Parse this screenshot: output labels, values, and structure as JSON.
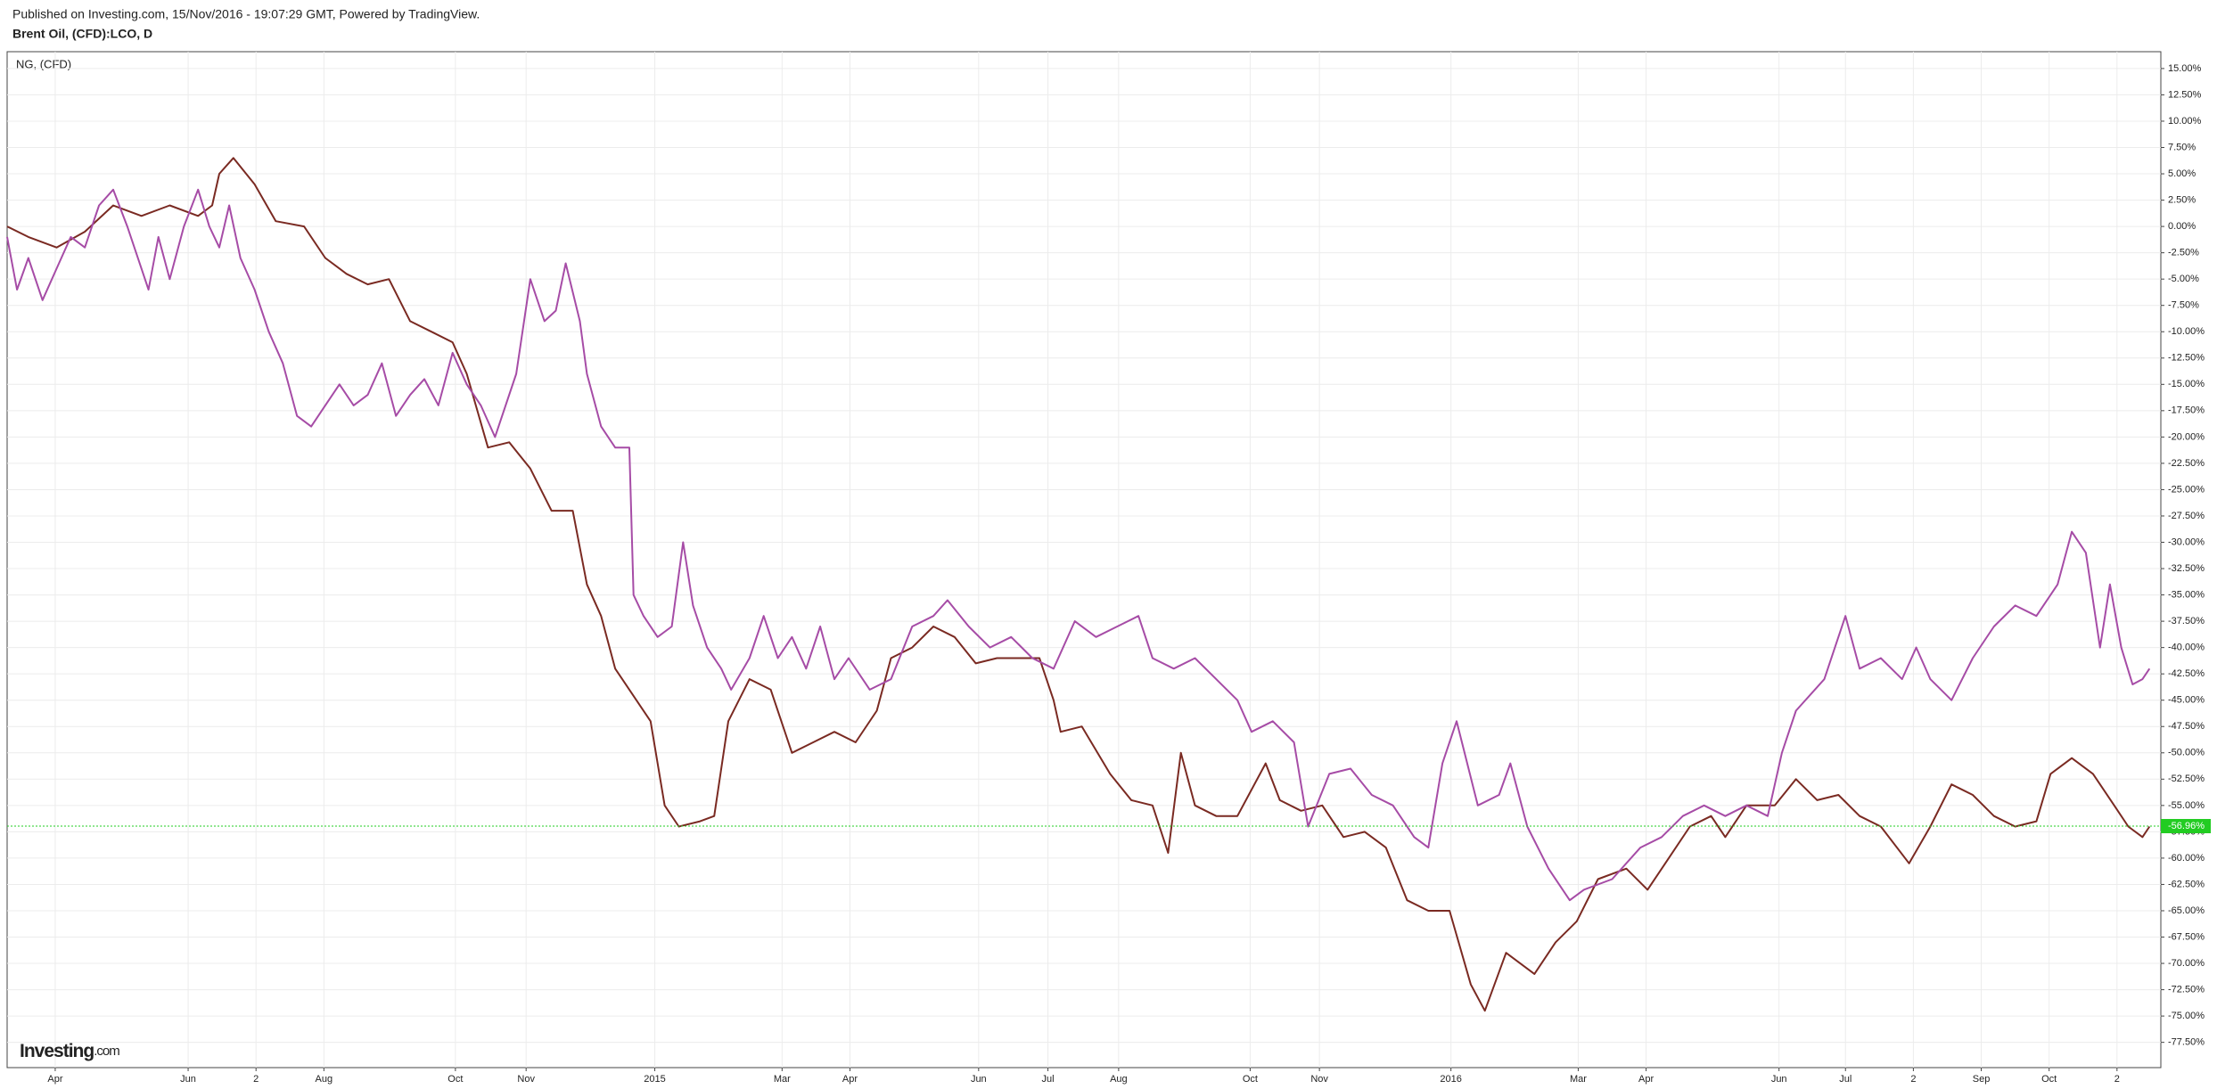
{
  "chart_data": {
    "type": "line",
    "subtitle": "Published on Investing.com, 15/Nov/2016 - 19:07:29 GMT, Powered by TradingView.",
    "title": "Brent Oil, (CFD):LCO, D",
    "legend_label": "NG,  (CFD)",
    "logo": [
      "Investing",
      ".com"
    ],
    "grid": true,
    "xlim": [
      5,
      1528
    ],
    "ylim": [
      -79.9,
      16.6
    ],
    "xticks": [
      {
        "value": 39,
        "label": "Apr"
      },
      {
        "value": 133,
        "label": "Jun"
      },
      {
        "value": 181,
        "label": "2"
      },
      {
        "value": 229,
        "label": "Aug"
      },
      {
        "value": 322,
        "label": "Oct"
      },
      {
        "value": 372,
        "label": "Nov"
      },
      {
        "value": 463,
        "label": "2015"
      },
      {
        "value": 553,
        "label": "Mar"
      },
      {
        "value": 601,
        "label": "Apr"
      },
      {
        "value": 692,
        "label": "Jun"
      },
      {
        "value": 741,
        "label": "Jul"
      },
      {
        "value": 791,
        "label": "Aug"
      },
      {
        "value": 884,
        "label": "Oct"
      },
      {
        "value": 933,
        "label": "Nov"
      },
      {
        "value": 1026,
        "label": "2016"
      },
      {
        "value": 1116,
        "label": "Mar"
      },
      {
        "value": 1164,
        "label": "Apr"
      },
      {
        "value": 1258,
        "label": "Jun"
      },
      {
        "value": 1305,
        "label": "Jul"
      },
      {
        "value": 1353,
        "label": "2"
      },
      {
        "value": 1401,
        "label": "Sep"
      },
      {
        "value": 1449,
        "label": "Oct"
      },
      {
        "value": 1497,
        "label": "2"
      }
    ],
    "yticks": [
      {
        "value": 15,
        "label": "15.00%"
      },
      {
        "value": 12.5,
        "label": "12.50%"
      },
      {
        "value": 10,
        "label": "10.00%"
      },
      {
        "value": 7.5,
        "label": "7.50%"
      },
      {
        "value": 5,
        "label": "5.00%"
      },
      {
        "value": 2.5,
        "label": "2.50%"
      },
      {
        "value": 0,
        "label": "0.00%"
      },
      {
        "value": -2.5,
        "label": "-2.50%"
      },
      {
        "value": -5,
        "label": "-5.00%"
      },
      {
        "value": -7.5,
        "label": "-7.50%"
      },
      {
        "value": -10,
        "label": "-10.00%"
      },
      {
        "value": -12.5,
        "label": "-12.50%"
      },
      {
        "value": -15,
        "label": "-15.00%"
      },
      {
        "value": -17.5,
        "label": "-17.50%"
      },
      {
        "value": -20,
        "label": "-20.00%"
      },
      {
        "value": -22.5,
        "label": "-22.50%"
      },
      {
        "value": -25,
        "label": "-25.00%"
      },
      {
        "value": -27.5,
        "label": "-27.50%"
      },
      {
        "value": -30,
        "label": "-30.00%"
      },
      {
        "value": -32.5,
        "label": "-32.50%"
      },
      {
        "value": -35,
        "label": "-35.00%"
      },
      {
        "value": -37.5,
        "label": "-37.50%"
      },
      {
        "value": -40,
        "label": "-40.00%"
      },
      {
        "value": -42.5,
        "label": "-42.50%"
      },
      {
        "value": -45,
        "label": "-45.00%"
      },
      {
        "value": -47.5,
        "label": "-47.50%"
      },
      {
        "value": -50,
        "label": "-50.00%"
      },
      {
        "value": -52.5,
        "label": "-52.50%"
      },
      {
        "value": -55,
        "label": "-55.00%"
      },
      {
        "value": -57.5,
        "label": "-57.50%"
      },
      {
        "value": -60,
        "label": "-60.00%"
      },
      {
        "value": -62.5,
        "label": "-62.50%"
      },
      {
        "value": -65,
        "label": "-65.00%"
      },
      {
        "value": -67.5,
        "label": "-67.50%"
      },
      {
        "value": -70,
        "label": "-70.00%"
      },
      {
        "value": -72.5,
        "label": "-72.50%"
      },
      {
        "value": -75,
        "label": "-75.00%"
      },
      {
        "value": -77.5,
        "label": "-77.50%"
      }
    ],
    "last_value": {
      "value": -56.96,
      "label": "-56.96%",
      "color": "#22cc22"
    },
    "series": [
      {
        "color": "#7a2a22",
        "x": [
          5,
          20,
          40,
          60,
          80,
          100,
          120,
          140,
          150,
          155,
          165,
          180,
          195,
          215,
          230,
          245,
          260,
          275,
          290,
          305,
          320,
          330,
          345,
          360,
          375,
          390,
          405,
          415,
          425,
          435,
          445,
          460,
          470,
          480,
          495,
          505,
          515,
          530,
          545,
          560,
          575,
          590,
          605,
          620,
          630,
          645,
          660,
          675,
          690,
          705,
          720,
          735,
          745,
          750,
          765,
          785,
          800,
          815,
          826,
          835,
          845,
          860,
          875,
          895,
          905,
          920,
          935,
          950,
          965,
          980,
          995,
          1010,
          1025,
          1040,
          1050,
          1065,
          1085,
          1100,
          1115,
          1130,
          1150,
          1165,
          1180,
          1195,
          1210,
          1220,
          1235,
          1255,
          1270,
          1285,
          1300,
          1315,
          1330,
          1350,
          1365,
          1380,
          1395,
          1410,
          1425,
          1440,
          1450,
          1465,
          1480,
          1495,
          1505,
          1515,
          1520
        ],
        "values": [
          0,
          -1,
          -2,
          -0.5,
          2,
          1,
          2,
          1,
          2,
          5,
          6.5,
          4,
          0.5,
          0,
          -3,
          -4.5,
          -5.5,
          -5,
          -9,
          -10,
          -11,
          -14,
          -21,
          -20.5,
          -23,
          -27,
          -27,
          -34,
          -37,
          -42,
          -44,
          -47,
          -55,
          -57,
          -56.5,
          -56,
          -47,
          -43,
          -44,
          -50,
          -49,
          -48,
          -49,
          -46,
          -41,
          -40,
          -38,
          -39,
          -41.5,
          -41,
          -41,
          -41,
          -45,
          -48,
          -47.5,
          -52,
          -54.5,
          -55,
          -59.5,
          -50,
          -55,
          -56,
          -56,
          -51,
          -54.5,
          -55.5,
          -55,
          -58,
          -57.5,
          -59,
          -64,
          -65,
          -65,
          -72,
          -74.5,
          -69,
          -71,
          -68,
          -66,
          -62,
          -61,
          -63,
          -60,
          -57,
          -56,
          -58,
          -55,
          -55,
          -52.5,
          -54.5,
          -54,
          -56,
          -57,
          -60.5,
          -57,
          -53,
          -54,
          -56,
          -57,
          -56.5,
          -52,
          -50.5,
          -52,
          -55,
          -57,
          -58,
          -57
        ]
      },
      {
        "name": "NG,  (CFD)",
        "color": "#a64ca6",
        "x": [
          5,
          12,
          20,
          30,
          40,
          50,
          60,
          70,
          80,
          90,
          100,
          105,
          112,
          120,
          130,
          140,
          148,
          155,
          162,
          170,
          180,
          190,
          200,
          210,
          220,
          230,
          240,
          250,
          260,
          270,
          280,
          290,
          300,
          310,
          320,
          330,
          340,
          350,
          365,
          375,
          385,
          393,
          400,
          410,
          415,
          425,
          435,
          445,
          448,
          455,
          465,
          475,
          483,
          490,
          500,
          510,
          517,
          530,
          540,
          550,
          560,
          570,
          580,
          590,
          600,
          615,
          630,
          645,
          660,
          670,
          685,
          700,
          715,
          730,
          745,
          760,
          775,
          790,
          805,
          815,
          830,
          845,
          860,
          875,
          885,
          900,
          915,
          925,
          940,
          955,
          970,
          985,
          1000,
          1010,
          1020,
          1030,
          1045,
          1060,
          1068,
          1080,
          1095,
          1110,
          1120,
          1140,
          1160,
          1175,
          1190,
          1205,
          1220,
          1235,
          1250,
          1260,
          1270,
          1290,
          1305,
          1315,
          1330,
          1345,
          1355,
          1365,
          1380,
          1395,
          1410,
          1425,
          1440,
          1455,
          1465,
          1475,
          1485,
          1492,
          1500,
          1508,
          1515,
          1520
        ],
        "values": [
          -1,
          -6,
          -3,
          -7,
          -4,
          -1,
          -2,
          2,
          3.5,
          0,
          -4,
          -6,
          -1,
          -5,
          0,
          3.5,
          0,
          -2,
          2,
          -3,
          -6,
          -10,
          -13,
          -18,
          -19,
          -17,
          -15,
          -17,
          -16,
          -13,
          -18,
          -16,
          -14.5,
          -17,
          -12,
          -15,
          -17,
          -20,
          -14,
          -5,
          -9,
          -8,
          -3.5,
          -9,
          -14,
          -19,
          -21,
          -21,
          -35,
          -37,
          -39,
          -38,
          -30,
          -36,
          -40,
          -42,
          -44,
          -41,
          -37,
          -41,
          -39,
          -42,
          -38,
          -43,
          -41,
          -44,
          -43,
          -38,
          -37,
          -35.5,
          -38,
          -40,
          -39,
          -41,
          -42,
          -37.5,
          -39,
          -38,
          -37,
          -41,
          -42,
          -41,
          -43,
          -45,
          -48,
          -47,
          -49,
          -57,
          -52,
          -51.5,
          -54,
          -55,
          -58,
          -59,
          -51,
          -47,
          -55,
          -54,
          -51,
          -57,
          -61,
          -64,
          -63,
          -62,
          -59,
          -58,
          -56,
          -55,
          -56,
          -55,
          -56,
          -50,
          -46,
          -43,
          -37,
          -42,
          -41,
          -43,
          -40,
          -43,
          -45,
          -41,
          -38,
          -36,
          -37,
          -34,
          -29,
          -31,
          -40,
          -34,
          -40,
          -43.5,
          -43,
          -42
        ]
      }
    ]
  }
}
